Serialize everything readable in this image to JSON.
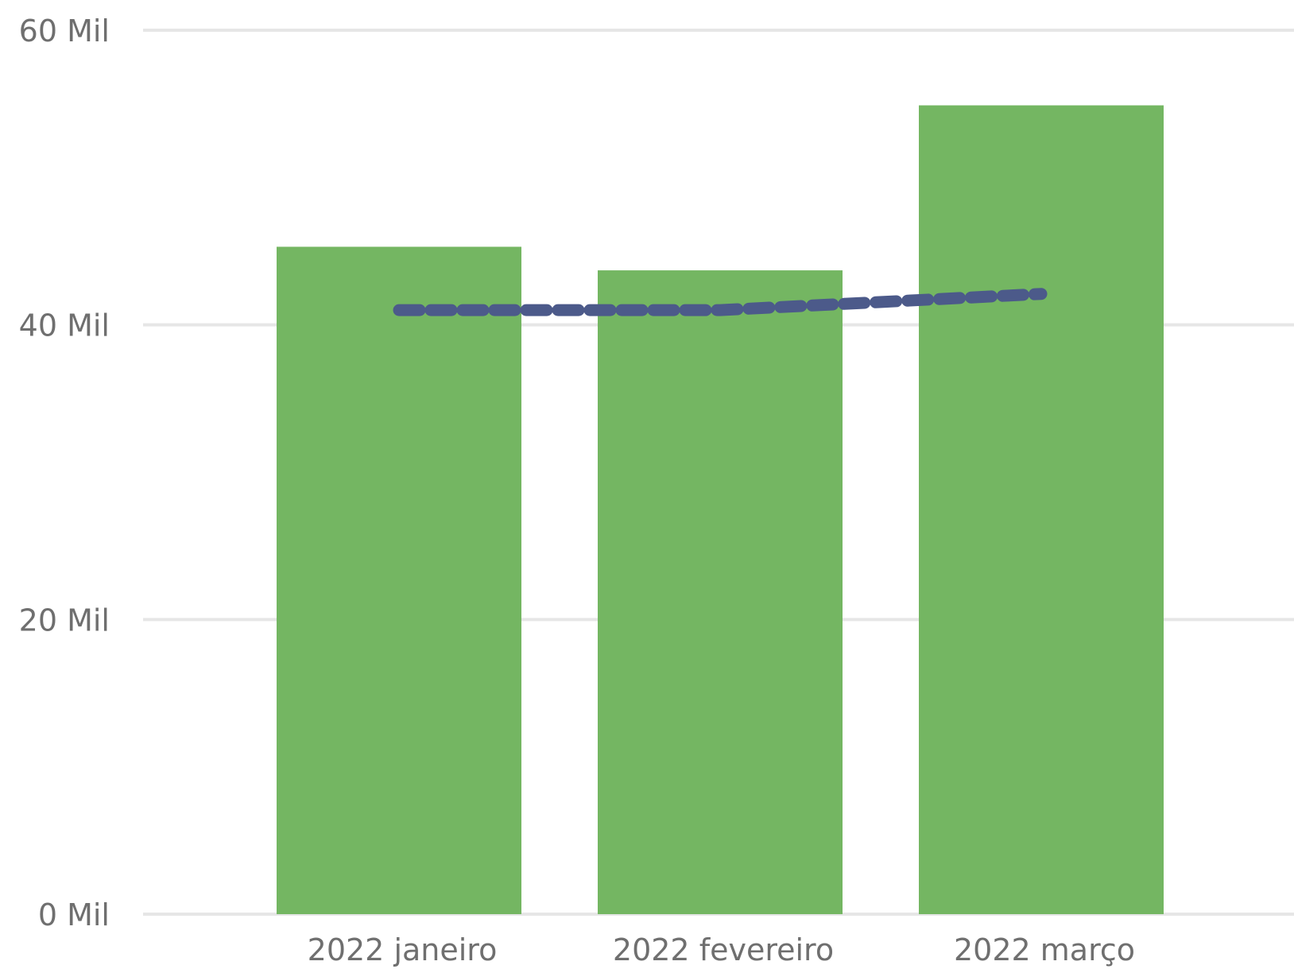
{
  "chart_data": {
    "type": "bar",
    "categories": [
      "2022 janeiro",
      "2022 fevereiro",
      "2022 março"
    ],
    "series": [
      {
        "values": [
          45300,
          43700,
          54900
        ],
        "color": "#74b662"
      }
    ],
    "trend_line": {
      "values": [
        41000,
        41000,
        42100
      ],
      "color": "#4c5a8a",
      "style": "dashed"
    },
    "y_ticks": [
      "0 Mil",
      "20 Mil",
      "40 Mil",
      "60 Mil"
    ],
    "y_tick_values": [
      0,
      20000,
      40000,
      60000
    ],
    "ylim": [
      0,
      60000
    ],
    "grid": true,
    "legend": "none",
    "title": "",
    "xlabel": "",
    "ylabel": ""
  }
}
